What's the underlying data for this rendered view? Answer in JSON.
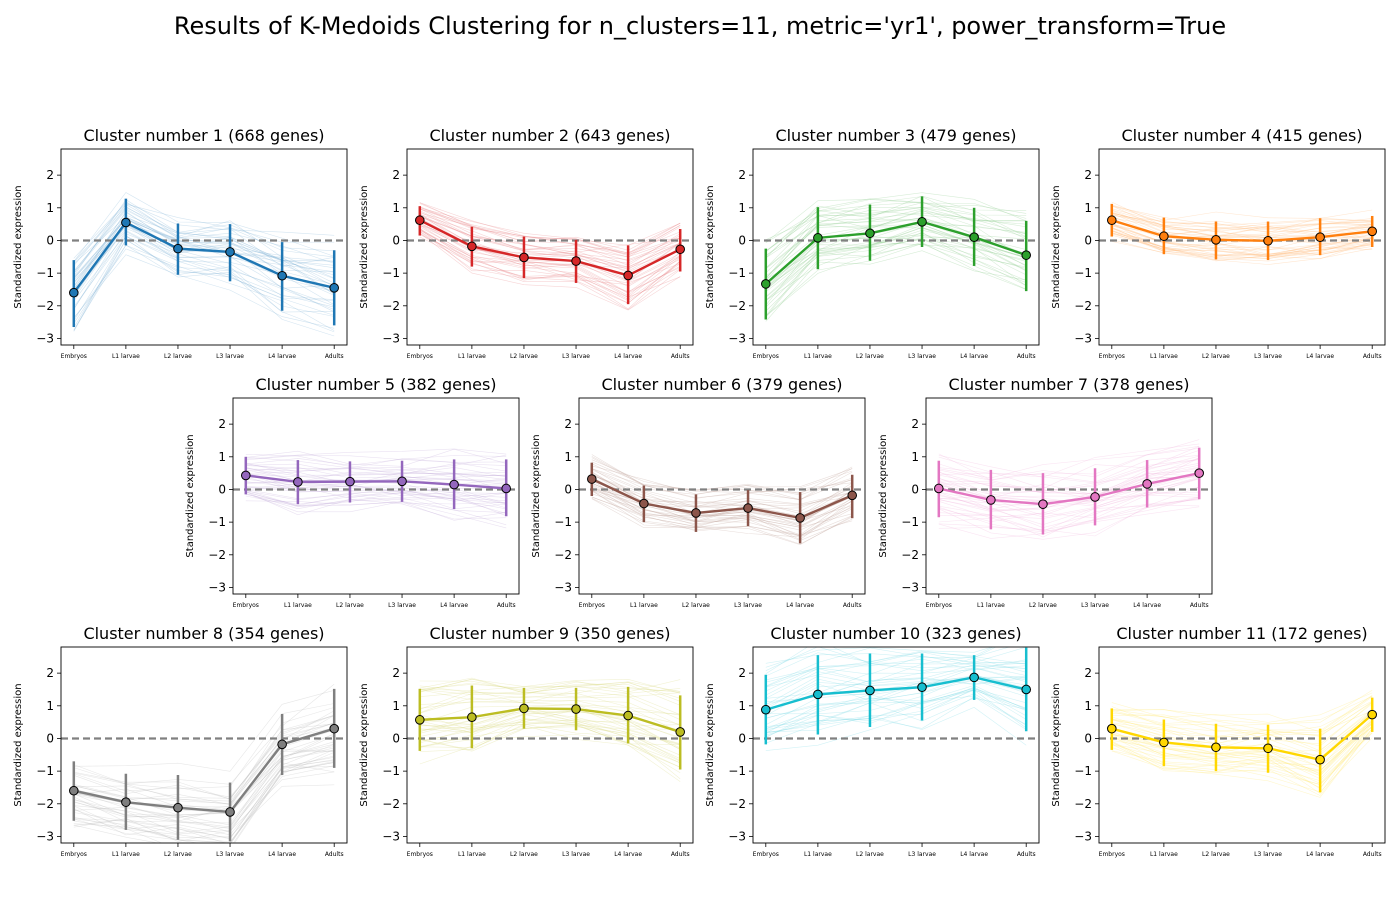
{
  "title": "Results of K-Medoids Clustering for n_clusters=11, metric='yr1', power_transform=True",
  "chart_data": {
    "type": "line",
    "title": "Results of K-Medoids Clustering for n_clusters=11, metric='yr1', power_transform=True",
    "categories": [
      "Embryos",
      "L1 larvae",
      "L2 larvae",
      "L3 larvae",
      "L4 larvae",
      "Adults"
    ],
    "ylabel": "Standardized expression",
    "ylim": [
      -3.2,
      2.8
    ],
    "yticks": [
      -3,
      -2,
      -1,
      0,
      1,
      2
    ],
    "reference_line": 0,
    "panels": [
      {
        "title": "Cluster number 1 (668 genes)",
        "color": "#1f77b4",
        "mean": [
          -1.6,
          0.55,
          -0.25,
          -0.35,
          -1.08,
          -1.45
        ],
        "err_low": [
          -2.65,
          -0.15,
          -1.05,
          -1.25,
          -2.15,
          -2.6
        ],
        "err_high": [
          -0.6,
          1.28,
          0.52,
          0.5,
          -0.05,
          -0.3
        ]
      },
      {
        "title": "Cluster number 2 (643 genes)",
        "color": "#d62728",
        "mean": [
          0.62,
          -0.18,
          -0.52,
          -0.63,
          -1.07,
          -0.27
        ],
        "err_low": [
          0.15,
          -0.8,
          -1.15,
          -1.3,
          -1.95,
          -0.95
        ],
        "err_high": [
          1.05,
          0.42,
          0.12,
          0.02,
          -0.15,
          0.35
        ]
      },
      {
        "title": "Cluster number 3 (479 genes)",
        "color": "#2ca02c",
        "mean": [
          -1.33,
          0.08,
          0.22,
          0.57,
          0.1,
          -0.45
        ],
        "err_low": [
          -2.42,
          -0.88,
          -0.62,
          -0.2,
          -0.78,
          -1.55
        ],
        "err_high": [
          -0.25,
          1.02,
          1.1,
          1.35,
          1.0,
          0.6
        ]
      },
      {
        "title": "Cluster number 4 (415 genes)",
        "color": "#ff7f0e",
        "mean": [
          0.62,
          0.13,
          0.02,
          -0.01,
          0.1,
          0.28
        ],
        "err_low": [
          0.12,
          -0.42,
          -0.58,
          -0.6,
          -0.45,
          -0.2
        ],
        "err_high": [
          1.12,
          0.7,
          0.58,
          0.58,
          0.68,
          0.75
        ]
      },
      {
        "title": "Cluster number 5 (382 genes)",
        "color": "#9467bd",
        "mean": [
          0.43,
          0.23,
          0.24,
          0.25,
          0.15,
          0.03
        ],
        "err_low": [
          -0.15,
          -0.45,
          -0.4,
          -0.38,
          -0.6,
          -0.82
        ],
        "err_high": [
          1.0,
          0.9,
          0.86,
          0.88,
          0.92,
          0.92
        ]
      },
      {
        "title": "Cluster number 6 (379 genes)",
        "color": "#8c564b",
        "mean": [
          0.32,
          -0.43,
          -0.72,
          -0.57,
          -0.87,
          -0.18
        ],
        "err_low": [
          -0.2,
          -1.0,
          -1.3,
          -1.12,
          -1.65,
          -0.88
        ],
        "err_high": [
          0.82,
          0.12,
          -0.15,
          -0.02,
          -0.08,
          0.45
        ]
      },
      {
        "title": "Cluster number 7 (378 genes)",
        "color": "#e377c2",
        "mean": [
          0.03,
          -0.32,
          -0.45,
          -0.23,
          0.17,
          0.5
        ],
        "err_low": [
          -0.85,
          -1.22,
          -1.38,
          -1.1,
          -0.55,
          -0.3
        ],
        "err_high": [
          0.88,
          0.6,
          0.5,
          0.65,
          0.9,
          1.28
        ]
      },
      {
        "title": "Cluster number 8 (354 genes)",
        "color": "#7f7f7f",
        "mean": [
          -1.6,
          -1.95,
          -2.12,
          -2.25,
          -0.18,
          0.3
        ],
        "err_low": [
          -2.52,
          -2.8,
          -3.1,
          -3.15,
          -1.12,
          -0.9
        ],
        "err_high": [
          -0.7,
          -1.08,
          -1.12,
          -1.35,
          0.75,
          1.52
        ]
      },
      {
        "title": "Cluster number 9 (350 genes)",
        "color": "#bcbd22",
        "mean": [
          0.57,
          0.65,
          0.92,
          0.9,
          0.7,
          0.2
        ],
        "err_low": [
          -0.38,
          -0.3,
          0.3,
          0.25,
          -0.15,
          -0.95
        ],
        "err_high": [
          1.52,
          1.62,
          1.55,
          1.55,
          1.58,
          1.32
        ]
      },
      {
        "title": "Cluster number 10 (323 genes)",
        "color": "#17becf",
        "mean": [
          0.88,
          1.35,
          1.47,
          1.57,
          1.87,
          1.5
        ],
        "err_low": [
          -0.18,
          0.12,
          0.35,
          0.55,
          1.18,
          0.22
        ],
        "err_high": [
          1.95,
          2.55,
          2.6,
          2.6,
          2.55,
          2.78
        ]
      },
      {
        "title": "Cluster number 11 (172 genes)",
        "color": "#ffd700",
        "mean": [
          0.3,
          -0.12,
          -0.27,
          -0.3,
          -0.65,
          0.73
        ],
        "err_low": [
          -0.35,
          -0.85,
          -1.0,
          -1.05,
          -1.65,
          0.2
        ],
        "err_high": [
          0.92,
          0.58,
          0.45,
          0.42,
          0.3,
          1.25
        ]
      }
    ]
  }
}
